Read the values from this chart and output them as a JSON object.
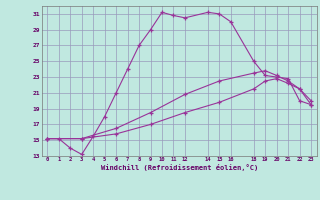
{
  "xlabel": "Windchill (Refroidissement éolien,°C)",
  "bg_color": "#c0e8e0",
  "line_color": "#993399",
  "grid_color": "#9999bb",
  "series1_x": [
    0,
    1,
    2,
    3,
    4,
    5,
    6,
    7,
    8,
    9,
    10,
    11,
    12,
    14,
    15,
    16,
    18,
    19,
    20,
    21,
    22,
    23
  ],
  "series1_y": [
    15.2,
    15.2,
    14.0,
    13.2,
    15.5,
    18.0,
    21.0,
    24.0,
    27.0,
    29.0,
    31.2,
    30.8,
    30.5,
    31.2,
    31.0,
    30.0,
    25.0,
    23.2,
    23.0,
    22.8,
    20.0,
    19.5
  ],
  "series2_x": [
    0,
    3,
    6,
    9,
    12,
    15,
    18,
    19,
    20,
    21,
    22,
    23
  ],
  "series2_y": [
    15.2,
    15.2,
    16.5,
    18.5,
    20.8,
    22.5,
    23.5,
    23.8,
    23.2,
    22.5,
    21.5,
    20.0
  ],
  "series3_x": [
    0,
    3,
    6,
    9,
    12,
    15,
    18,
    19,
    20,
    21,
    22,
    23
  ],
  "series3_y": [
    15.2,
    15.2,
    15.8,
    17.0,
    18.5,
    19.8,
    21.5,
    22.5,
    22.8,
    22.2,
    21.5,
    19.5
  ],
  "xlim": [
    -0.5,
    23.5
  ],
  "ylim": [
    13,
    32
  ],
  "yticks": [
    13,
    15,
    17,
    19,
    21,
    23,
    25,
    27,
    29,
    31
  ],
  "xticks": [
    0,
    1,
    2,
    3,
    4,
    5,
    6,
    7,
    8,
    9,
    10,
    11,
    12,
    14,
    15,
    16,
    18,
    19,
    20,
    21,
    22,
    23
  ]
}
